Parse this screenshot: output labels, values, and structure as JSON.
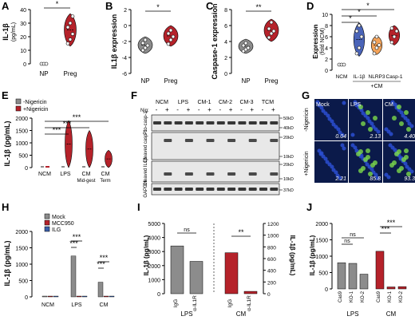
{
  "colors": {
    "red": "#b5222a",
    "darkred": "#8b1a22",
    "gray": "#8c8c8c",
    "darkgray": "#555555",
    "blue": "#3a5fa8",
    "orange": "#f3a35a",
    "black": "#111111"
  },
  "panel_labels": [
    "A",
    "B",
    "C",
    "D",
    "E",
    "F",
    "G",
    "H",
    "I",
    "J"
  ],
  "chart_data": [
    {
      "panel": "A",
      "type": "violin",
      "ylabel": "IL-1β (pg/mL)",
      "ylim": [
        0,
        40
      ],
      "yticks": [
        "0",
        "10",
        "20",
        "30",
        "40"
      ],
      "categories": [
        "NP",
        "Preg"
      ],
      "points": [
        [
          0,
          0,
          0
        ],
        [
          15,
          18,
          22,
          27,
          30,
          35
        ]
      ],
      "significance": [
        "*"
      ]
    },
    {
      "panel": "B",
      "type": "violin",
      "ylabel": "IL1β expression",
      "ylim": [
        -6,
        2
      ],
      "yticks": [
        "-6",
        "-4",
        "-2",
        "0",
        "2"
      ],
      "categories": [
        "NP",
        "Preg"
      ],
      "points": [
        [
          -3.1,
          -2.8,
          -2.5,
          -2.2,
          -1.8
        ],
        [
          -2.3,
          -1.8,
          -1.4,
          -1,
          -0.6
        ]
      ],
      "significance": [
        "*"
      ]
    },
    {
      "panel": "C",
      "type": "violin",
      "ylabel": "Caspase-1 expression",
      "ylim": [
        0,
        8
      ],
      "yticks": [
        "0",
        "2",
        "4",
        "6",
        "8"
      ],
      "categories": [
        "NP",
        "Preg"
      ],
      "points": [
        [
          2.8,
          3,
          3.2,
          3.5,
          3.8
        ],
        [
          4.5,
          5,
          5.3,
          5.6,
          6.4
        ]
      ],
      "significance": [
        "**"
      ]
    },
    {
      "panel": "D",
      "type": "violin",
      "ylabel": "Expression (fold NCM)",
      "ylim": [
        0,
        10
      ],
      "yticks": [
        "0",
        "2",
        "4",
        "6",
        "8",
        "10"
      ],
      "categories": [
        "NCM",
        "IL-1β",
        "NLRP3",
        "Casp-1"
      ],
      "group_label": "+CM",
      "points": [
        [
          1,
          1,
          1
        ],
        [
          3,
          4,
          6,
          7,
          8
        ],
        [
          3,
          4,
          4.5,
          5,
          6
        ],
        [
          5,
          6,
          7,
          7.5
        ]
      ],
      "significance": [
        "*",
        "*",
        "*"
      ]
    },
    {
      "panel": "E",
      "type": "violin",
      "ylabel": "IL-1β (pg/mL)",
      "ylim": [
        0,
        2000
      ],
      "yticks": [
        "0",
        "500",
        "1000",
        "1500",
        "2000"
      ],
      "categories": [
        "NCM",
        "LPS",
        "CM",
        "CM"
      ],
      "sublabels": [
        "",
        "",
        "Mid-gest",
        "Term"
      ],
      "series": [
        {
          "name": "-Nigericin",
          "values": [
            5,
            5,
            5,
            5
          ]
        },
        {
          "name": "+Nigericin",
          "values": [
            5,
            1900,
            1500,
            700
          ]
        }
      ],
      "significance": [
        "***",
        "***",
        "***"
      ]
    },
    {
      "panel": "F",
      "type": "blot",
      "lanes": [
        "NCM",
        "LPS",
        "CM-1",
        "CM-2",
        "CM-3",
        "TCM"
      ],
      "nig_label": "Nig:",
      "signs": [
        "-",
        "+",
        "-",
        "+",
        "-",
        "+",
        "-",
        "+",
        "-",
        "+",
        "-",
        "+"
      ],
      "rows": [
        "Pro-casp-1",
        "Cleaved casp-1",
        "Cleaved IL1β",
        "GAPDH"
      ],
      "markers": [
        "50kD",
        "40kD",
        "20kD",
        "10kD",
        "20kD",
        "10kD",
        "37kD"
      ]
    },
    {
      "panel": "G",
      "type": "micrograph",
      "cols": [
        "Mock",
        "LPS",
        "CM"
      ],
      "rows": [
        "-Nigericin",
        "+Nigericin"
      ],
      "values": [
        "0.04",
        "2.13",
        "4.40",
        "2.21",
        "85.8",
        "93.3"
      ]
    },
    {
      "panel": "H",
      "type": "bar",
      "ylabel": "IL-1β (pg/mL)",
      "ylim": [
        0,
        2000
      ],
      "yticks": [
        "0",
        "500",
        "1000",
        "1500",
        "2000"
      ],
      "categories": [
        "NCM",
        "LPS",
        "CM"
      ],
      "series": [
        {
          "name": "Mock",
          "values": [
            5,
            1250,
            450
          ]
        },
        {
          "name": "MCC950",
          "values": [
            5,
            10,
            10
          ]
        },
        {
          "name": "ILG",
          "values": [
            5,
            10,
            10
          ]
        }
      ],
      "significance": [
        "***",
        "***",
        "***",
        "***"
      ]
    },
    {
      "panel": "I",
      "type": "bar",
      "ylabel": "IL-1β (pg/mL)",
      "ylim": [
        0,
        5000
      ],
      "yticks": [
        "0",
        "1000",
        "2000",
        "3000",
        "4000",
        "5000"
      ],
      "ylabel_right": "IL-1β (pg/mL)",
      "yticks_right": [
        "0",
        "200",
        "400",
        "600",
        "800",
        "1000",
        "1200"
      ],
      "categories": [
        "IgG",
        "α-IL1R",
        "IgG",
        "α-IL1R"
      ],
      "groups": [
        "LPS",
        "CM"
      ],
      "values": [
        3400,
        2300,
        700,
        40
      ],
      "significance": [
        "ns",
        "**"
      ]
    },
    {
      "panel": "J",
      "type": "bar",
      "ylabel": "IL-1β (pg/mL)",
      "ylim": [
        0,
        2000
      ],
      "yticks": [
        "0",
        "500",
        "1000",
        "1500",
        "2000"
      ],
      "categories": [
        "Cas9",
        "KO-1",
        "KO-2",
        "Cas9",
        "KO-1",
        "KO-2"
      ],
      "groups": [
        "LPS",
        "CM"
      ],
      "values": [
        800,
        780,
        450,
        1150,
        60,
        70
      ],
      "significance": [
        "ns",
        "ns",
        "***",
        "***"
      ]
    }
  ]
}
